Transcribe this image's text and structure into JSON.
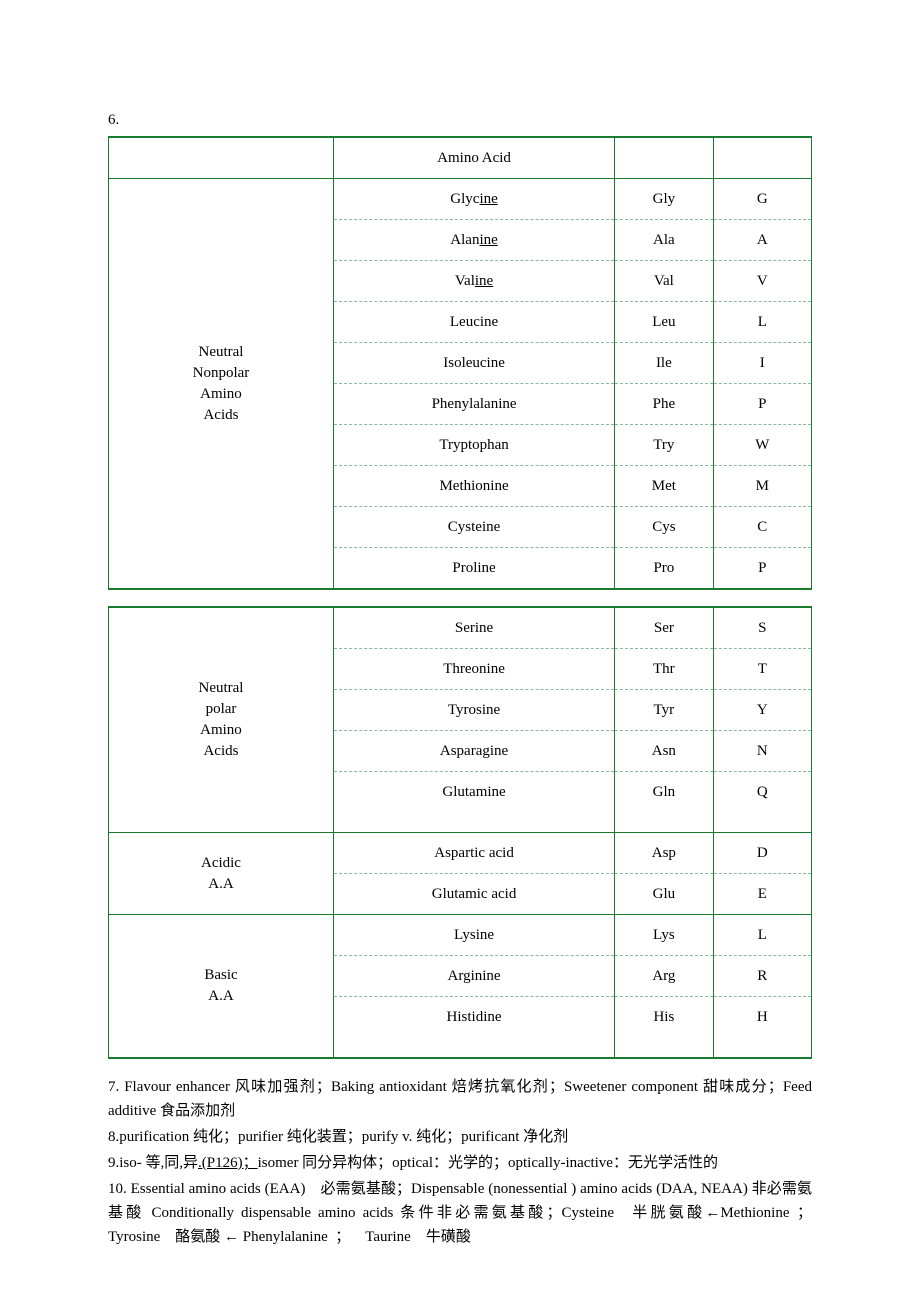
{
  "section6_label": "6.",
  "table1": {
    "border_color": "#1a7a2e",
    "dashed_color": "#8fb89a",
    "header_col2": "Amino Acid",
    "group_label": "Neutral Nonpolar Amino Acids",
    "rows": [
      {
        "name_prefix": "Glyc",
        "name_suffix": "ine",
        "abbr3": "Gly",
        "abbr1": "G"
      },
      {
        "name_prefix": "Alan",
        "name_suffix": "ine",
        "abbr3": "Ala",
        "abbr1": "A"
      },
      {
        "name_prefix": "Val",
        "name_suffix": "ine",
        "abbr3": "Val",
        "abbr1": "V"
      },
      {
        "name_prefix": "Leucine",
        "name_suffix": "",
        "abbr3": "Leu",
        "abbr1": "L"
      },
      {
        "name_prefix": "Isoleucine",
        "name_suffix": "",
        "abbr3": "Ile",
        "abbr1": "I"
      },
      {
        "name_prefix": "Phenylalanine",
        "name_suffix": "",
        "abbr3": "Phe",
        "abbr1": "P"
      },
      {
        "name_prefix": "Tryptophan",
        "name_suffix": "",
        "abbr3": "Try",
        "abbr1": "W"
      },
      {
        "name_prefix": "Methionine",
        "name_suffix": "",
        "abbr3": "Met",
        "abbr1": "M"
      },
      {
        "name_prefix": "Cysteine",
        "name_suffix": "",
        "abbr3": "Cys",
        "abbr1": "C"
      },
      {
        "name_prefix": "Proline",
        "name_suffix": "",
        "abbr3": "Pro",
        "abbr1": "P"
      }
    ]
  },
  "table2": {
    "groups": [
      {
        "label": "Neutral polar Amino Acids",
        "rows": [
          {
            "name": "Serine",
            "abbr3": "Ser",
            "abbr1": "S"
          },
          {
            "name": "Threonine",
            "abbr3": "Thr",
            "abbr1": "T"
          },
          {
            "name": "Tyrosine",
            "abbr3": "Tyr",
            "abbr1": "Y"
          },
          {
            "name": "Asparagine",
            "abbr3": "Asn",
            "abbr1": "N"
          },
          {
            "name": "Glutamine",
            "abbr3": "Gln",
            "abbr1": "Q"
          }
        ]
      },
      {
        "label": "Acidic A.A",
        "rows": [
          {
            "name": "Aspartic acid",
            "abbr3": "Asp",
            "abbr1": "D"
          },
          {
            "name": "Glutamic acid",
            "abbr3": "Glu",
            "abbr1": "E"
          }
        ]
      },
      {
        "label": "Basic A.A",
        "rows": [
          {
            "name": "Lysine",
            "abbr3": "Lys",
            "abbr1": "L"
          },
          {
            "name": "Arginine",
            "abbr3": "Arg",
            "abbr1": "R"
          },
          {
            "name": "Histidine",
            "abbr3": "His",
            "abbr1": "H"
          }
        ]
      }
    ]
  },
  "notes": {
    "n7": "7. Flavour enhancer 风味加强剂；Baking antioxidant 焙烤抗氧化剂；Sweetener component 甜味成分；Feed additive 食品添加剂",
    "n8": "8.purification 纯化；purifier 纯化装置；purify v. 纯化；purificant 净化剂",
    "n9_a": "9.iso- 等,同,异",
    "n9_link": ".(P126)；",
    "n9_b": "isomer 同分异构体；optical：光学的；optically-inactive：无光学活性的",
    "n10": "10. Essential amino acids (EAA) 必需氨基酸；Dispensable (nonessential ) amino acids (DAA, NEAA) 非必需氨基酸 Conditionally dispensable amino acids 条件非必需氨基酸；Cysteine 半胱氨酸←Methionine ；Tyrosine 酪氨酸 ← Phenylalanine ； Taurine 牛磺酸"
  }
}
